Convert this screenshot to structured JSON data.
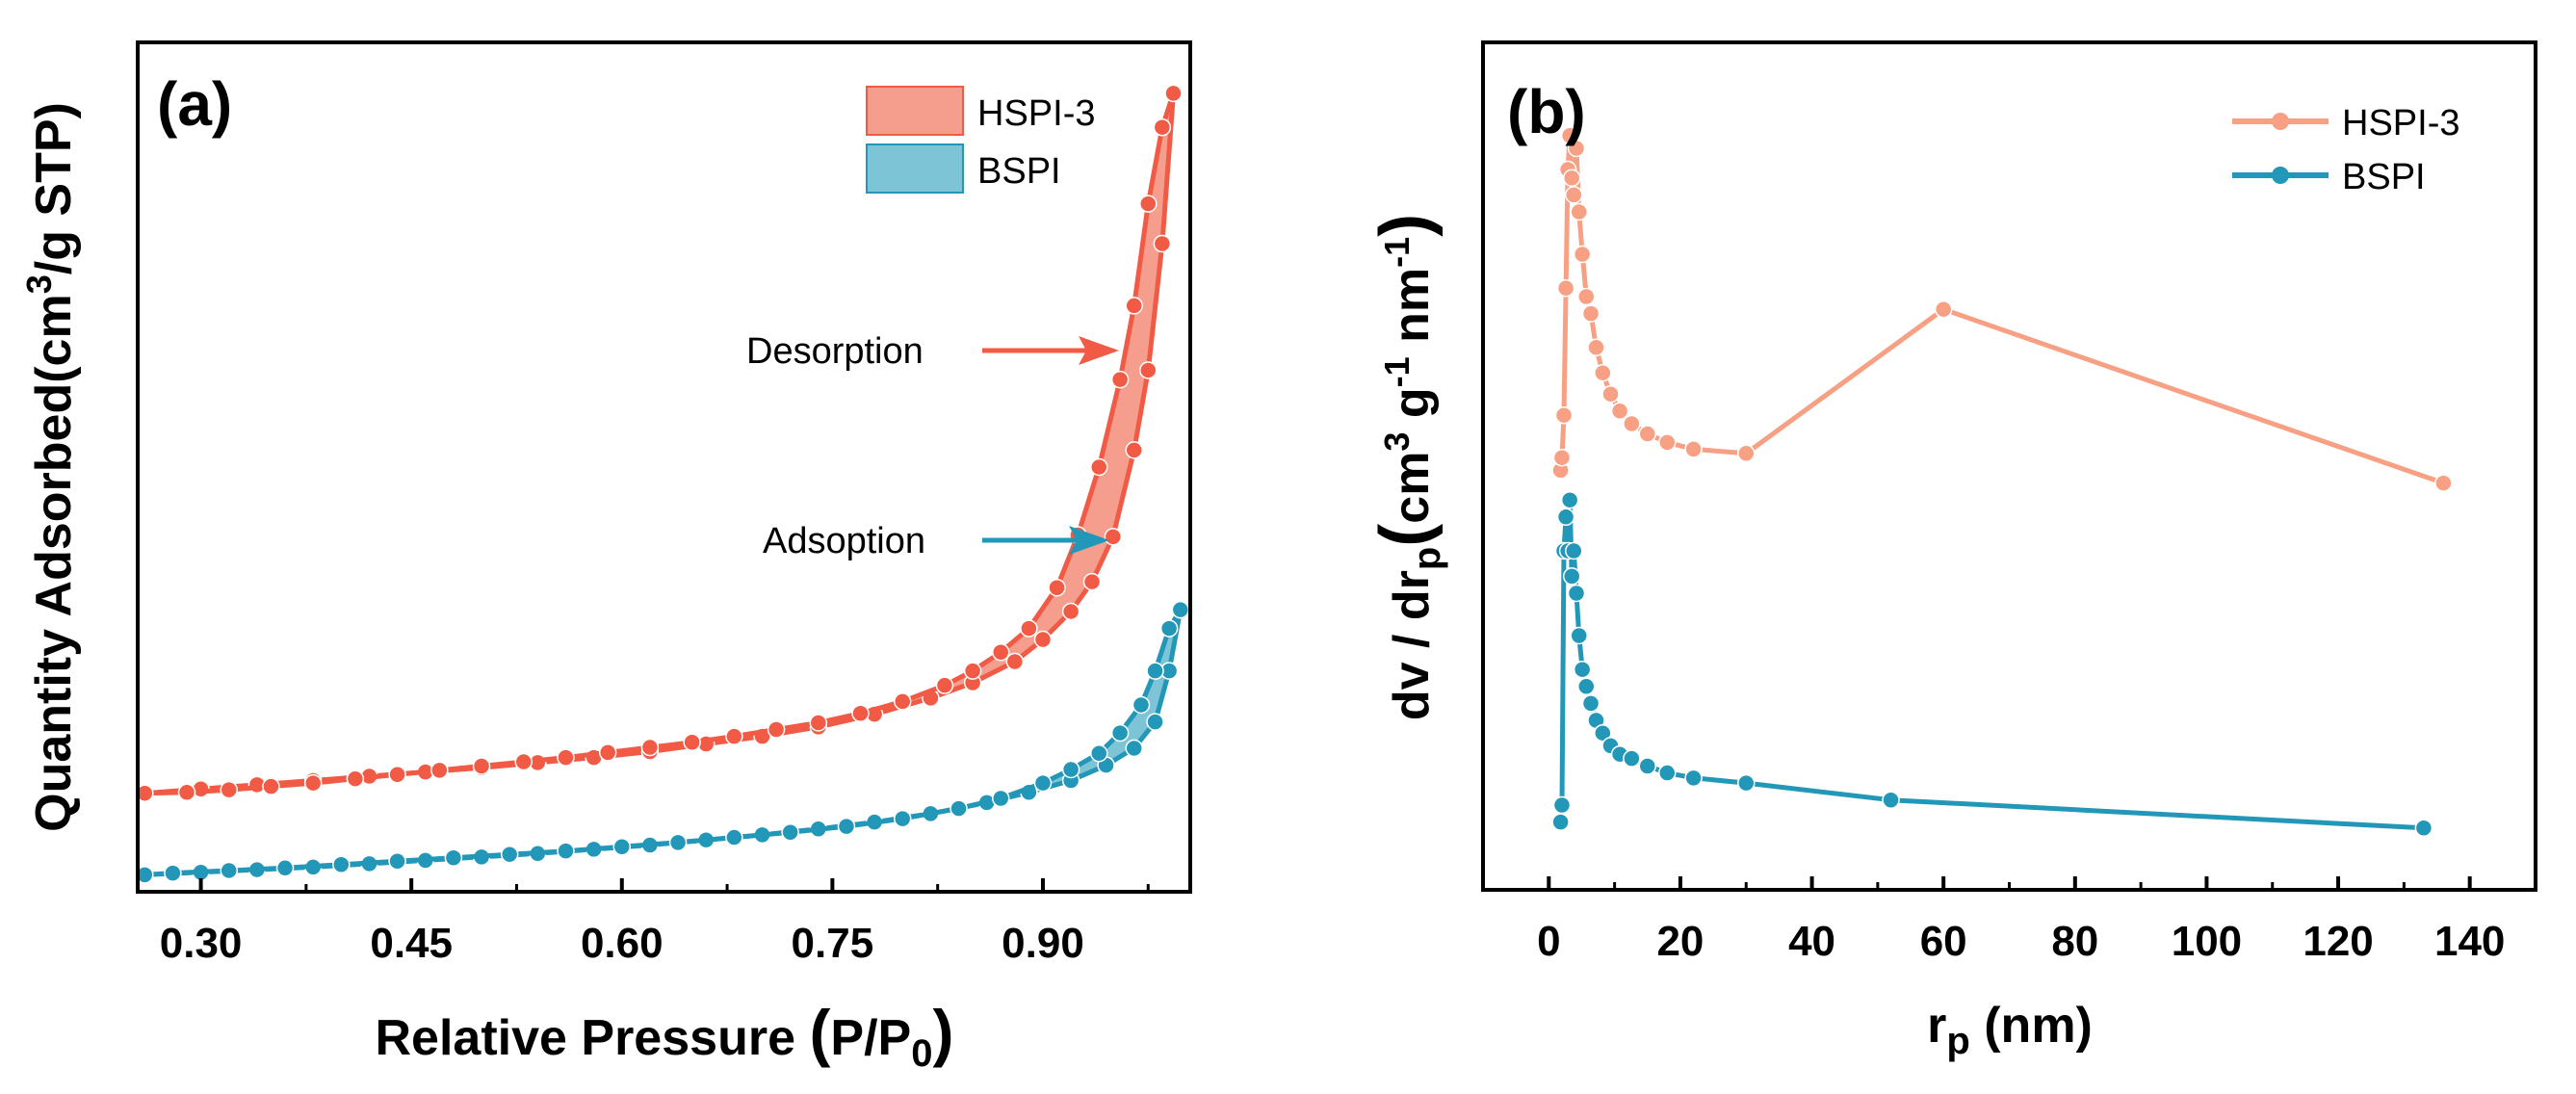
{
  "colors": {
    "hspi_a": "#F15A45",
    "hspi_a_fill": "#F59E8D",
    "hspi_b": "#F7A084",
    "bspi": "#2397B8",
    "bspi_fill": "#7CC4D6"
  },
  "chart_data": [
    {
      "panel": "(a)",
      "type": "line",
      "title": "",
      "xlabel_main": "Relative Pressure ",
      "xlabel_paren_open": "(",
      "xlabel_p": "P/P",
      "xlabel_sub": "0",
      "xlabel_paren_close": ")",
      "ylabel_main": "Quantity Adsorbed(cm",
      "ylabel_sup": "3",
      "ylabel_rest": "/g STP)",
      "xlim": [
        0.255,
        1.005
      ],
      "ylim": [
        0,
        100
      ],
      "xticks": [
        0.3,
        0.45,
        0.6,
        0.75,
        0.9
      ],
      "xtick_labels": [
        "0.30",
        "0.45",
        "0.60",
        "0.75",
        "0.90"
      ],
      "yticks": [],
      "legend": {
        "placement": "top-right",
        "entries": [
          {
            "name": "HSPI-3",
            "color": "hspi_a",
            "fill": "hspi_a_fill"
          },
          {
            "name": "BSPI",
            "color": "bspi",
            "fill": "bspi_fill"
          }
        ]
      },
      "annotations": [
        {
          "text": "Desorption",
          "x": 0.955,
          "y": 60.3,
          "color": "hspi_a"
        },
        {
          "text": "Adsoption",
          "x": 0.955,
          "y": 38.6,
          "color": "bspi"
        }
      ],
      "series": [
        {
          "name": "HSPI-3",
          "color": "hspi_a",
          "fill": "hspi_a_fill",
          "adsorption": {
            "x": [
              0.26,
              0.3,
              0.34,
              0.38,
              0.42,
              0.46,
              0.5,
              0.54,
              0.58,
              0.62,
              0.66,
              0.7,
              0.74,
              0.78,
              0.82,
              0.85,
              0.88,
              0.9,
              0.92,
              0.935,
              0.95,
              0.965,
              0.975,
              0.985,
              0.993
            ],
            "y": [
              11.6,
              12.1,
              12.6,
              13.1,
              13.6,
              14.1,
              14.6,
              15.2,
              15.8,
              16.5,
              17.4,
              18.3,
              19.4,
              20.9,
              22.8,
              24.6,
              27.1,
              29.7,
              33.0,
              36.5,
              41.8,
              52.0,
              61.4,
              76.3,
              94.0
            ]
          },
          "desorption": {
            "x": [
              0.993,
              0.985,
              0.975,
              0.965,
              0.955,
              0.94,
              0.925,
              0.91,
              0.89,
              0.87,
              0.85,
              0.83,
              0.8,
              0.77,
              0.74,
              0.71,
              0.68,
              0.65,
              0.62,
              0.59,
              0.56,
              0.53,
              0.5,
              0.47,
              0.44,
              0.41,
              0.38,
              0.35,
              0.32,
              0.29,
              0.26
            ],
            "y": [
              94.0,
              90.0,
              81.0,
              69.0,
              60.3,
              50.0,
              42.0,
              35.8,
              31.0,
              28.2,
              26.0,
              24.3,
              22.4,
              21.0,
              19.9,
              19.1,
              18.3,
              17.6,
              17.0,
              16.4,
              15.8,
              15.3,
              14.8,
              14.3,
              13.8,
              13.3,
              12.8,
              12.4,
              12.0,
              11.7,
              11.6
            ]
          }
        },
        {
          "name": "BSPI",
          "color": "bspi",
          "fill": "bspi_fill",
          "adsorption": {
            "x": [
              0.26,
              0.3,
              0.34,
              0.38,
              0.42,
              0.46,
              0.5,
              0.54,
              0.58,
              0.62,
              0.66,
              0.7,
              0.74,
              0.78,
              0.82,
              0.86,
              0.89,
              0.92,
              0.945,
              0.965,
              0.98,
              0.99,
              0.998
            ],
            "y": [
              2.0,
              2.3,
              2.6,
              2.9,
              3.3,
              3.7,
              4.1,
              4.5,
              5.0,
              5.5,
              6.1,
              6.7,
              7.4,
              8.2,
              9.2,
              10.5,
              11.7,
              13.1,
              14.9,
              16.9,
              20.0,
              26.0,
              33.2
            ]
          },
          "desorption": {
            "x": [
              0.998,
              0.99,
              0.98,
              0.97,
              0.955,
              0.94,
              0.92,
              0.9,
              0.87,
              0.84,
              0.8,
              0.76,
              0.72,
              0.68,
              0.64,
              0.6,
              0.56,
              0.52,
              0.48,
              0.44,
              0.4,
              0.36,
              0.32,
              0.28,
              0.26
            ],
            "y": [
              33.2,
              31.0,
              26.0,
              22.0,
              18.7,
              16.3,
              14.4,
              12.8,
              11.0,
              9.8,
              8.6,
              7.7,
              7.0,
              6.4,
              5.8,
              5.3,
              4.8,
              4.4,
              4.0,
              3.6,
              3.2,
              2.8,
              2.5,
              2.2,
              2.0
            ]
          }
        }
      ]
    },
    {
      "panel": "(b)",
      "type": "line",
      "title": "",
      "xlabel_main": "r",
      "xlabel_sub": "p",
      "xlabel_rest": " (nm)",
      "ylabel_dv": "dv / dr",
      "ylabel_dv_sub": "p",
      "ylabel_paren_open": "(",
      "ylabel_cm": "cm",
      "ylabel_cm_sup": "3",
      "ylabel_g": " g",
      "ylabel_g_sup": "-1",
      "ylabel_nm": " nm",
      "ylabel_nm_sup": "-1",
      "ylabel_paren_close": ")",
      "xlim": [
        -10,
        150
      ],
      "ylim": [
        0,
        100
      ],
      "xticks": [
        0,
        20,
        40,
        60,
        80,
        100,
        120,
        140
      ],
      "xtick_labels": [
        "0",
        "20",
        "40",
        "60",
        "80",
        "100",
        "120",
        "140"
      ],
      "yticks": [],
      "legend": {
        "placement": "top-right",
        "entries": [
          {
            "name": "HSPI-3",
            "color": "hspi_b"
          },
          {
            "name": "BSPI",
            "color": "bspi"
          }
        ]
      },
      "series": [
        {
          "name": "HSPI-3",
          "color": "hspi_b",
          "x": [
            1.8,
            2.0,
            2.3,
            2.6,
            2.9,
            3.2,
            3.5,
            3.8,
            4.2,
            4.6,
            5.1,
            5.7,
            6.4,
            7.2,
            8.2,
            9.4,
            10.8,
            12.6,
            15.0,
            18.0,
            22.0,
            30.0,
            60.0,
            136.0
          ],
          "y": [
            49.5,
            51.0,
            56.0,
            71.0,
            85.0,
            89.0,
            84.0,
            82.0,
            87.5,
            80.0,
            75.0,
            70.0,
            68.0,
            64.0,
            61.0,
            58.5,
            56.5,
            55.0,
            53.8,
            52.8,
            52.0,
            51.5,
            68.5,
            48.0
          ]
        },
        {
          "name": "BSPI",
          "color": "bspi",
          "x": [
            1.8,
            2.0,
            2.3,
            2.6,
            2.9,
            3.2,
            3.5,
            3.8,
            4.2,
            4.6,
            5.1,
            5.7,
            6.4,
            7.2,
            8.2,
            9.4,
            10.8,
            12.6,
            15.0,
            18.0,
            22.0,
            30.0,
            52.0,
            133.0
          ],
          "y": [
            8.0,
            10.0,
            40.0,
            44.0,
            40.0,
            46.0,
            37.0,
            40.0,
            35.0,
            30.0,
            26.0,
            24.0,
            22.0,
            20.0,
            18.5,
            17.0,
            16.0,
            15.5,
            14.6,
            13.8,
            13.2,
            12.6,
            10.6,
            7.3
          ]
        }
      ]
    }
  ]
}
